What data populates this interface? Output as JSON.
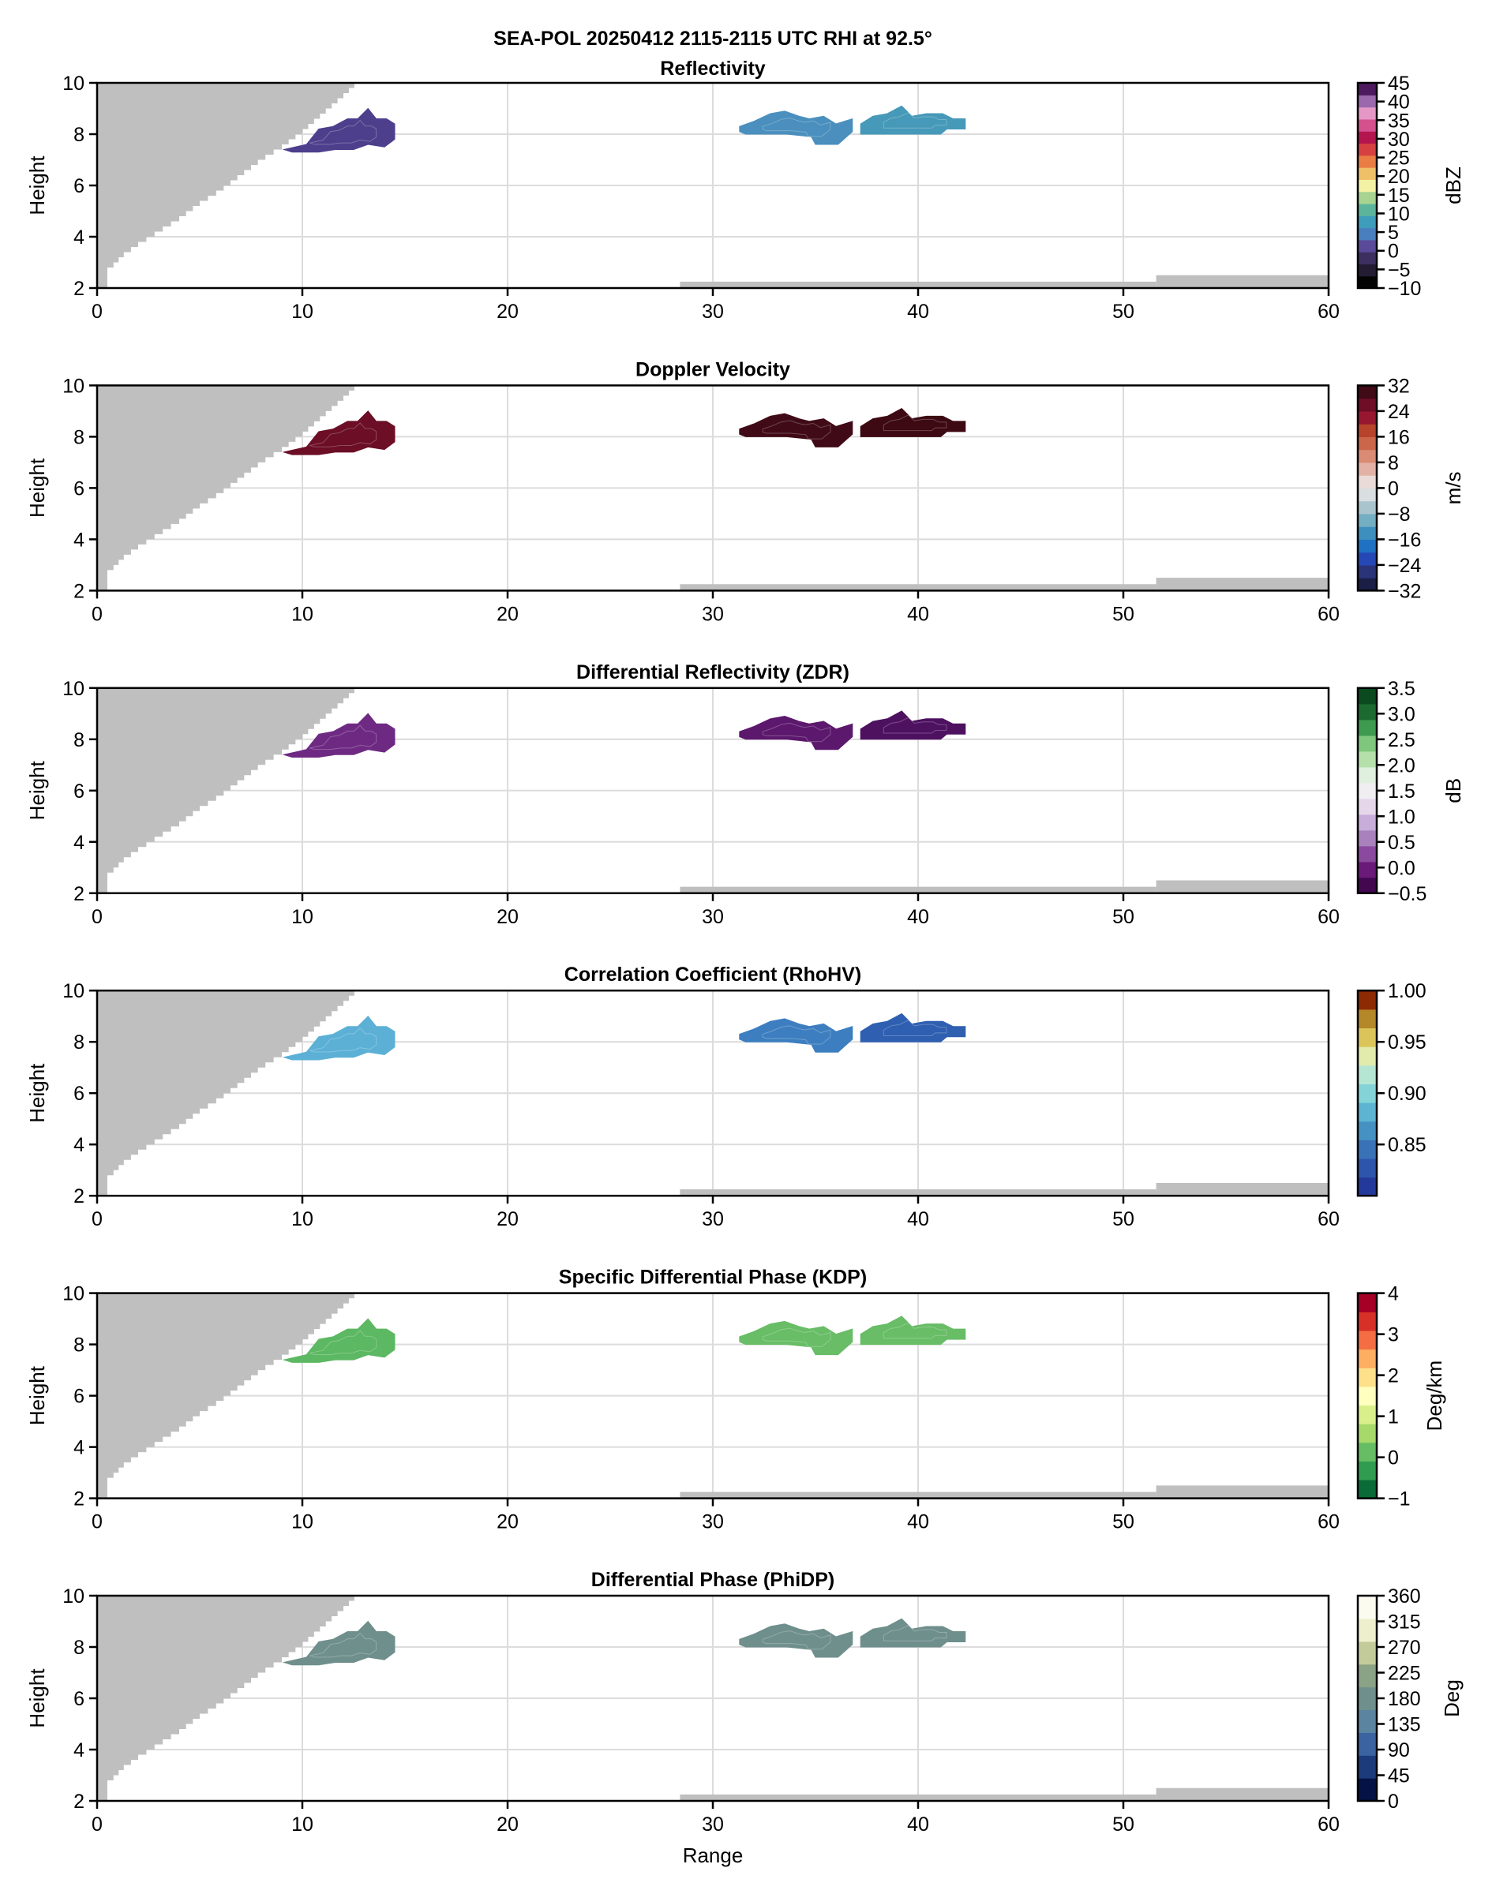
{
  "chart_data": {
    "type": "heatmap",
    "suptitle": "SEA-POL 20250412 2115-2115 UTC RHI at 92.5°",
    "xlabel": "Range",
    "ylabel": "Height",
    "xlim": [
      0,
      60
    ],
    "ylim": [
      2,
      10
    ],
    "xticks": [
      0,
      10,
      20,
      30,
      40,
      50,
      60
    ],
    "yticks": [
      2,
      4,
      6,
      8,
      10
    ],
    "grid": true,
    "blockage": {
      "color": "#bfbfbf",
      "description": "Gray blocked region: stepped wedge rising from range 0 at height ~2.3 to range ~12.8 at height 10; flat strip at height ~2.25 from range 28.4 to 51.6, stepping to ~2.5 from 51.6 to 60",
      "wedge_edge": [
        [
          0.5,
          2.0
        ],
        [
          0.5,
          2.6
        ],
        [
          0.8,
          2.8
        ],
        [
          1.3,
          3.2
        ],
        [
          2.0,
          3.6
        ],
        [
          3.0,
          4.1
        ],
        [
          4.0,
          4.6
        ],
        [
          5.0,
          5.2
        ],
        [
          6.0,
          5.7
        ],
        [
          7.0,
          6.3
        ],
        [
          8.0,
          6.9
        ],
        [
          9.0,
          7.4
        ],
        [
          10.0,
          8.0
        ],
        [
          11.0,
          8.7
        ],
        [
          12.0,
          9.4
        ],
        [
          12.8,
          10.0
        ]
      ],
      "floor_strips": [
        {
          "x0": 28.4,
          "x1": 51.6,
          "top": 2.25
        },
        {
          "x0": 51.6,
          "x1": 60.0,
          "top": 2.5
        }
      ]
    },
    "echoes": [
      {
        "name": "echo-near",
        "outline": [
          [
            9.1,
            7.4
          ],
          [
            10.2,
            7.6
          ],
          [
            10.8,
            8.2
          ],
          [
            11.5,
            8.3
          ],
          [
            12.2,
            8.6
          ],
          [
            12.7,
            8.6
          ],
          [
            13.2,
            9.0
          ],
          [
            13.6,
            8.6
          ],
          [
            14.1,
            8.6
          ],
          [
            14.5,
            8.4
          ],
          [
            14.5,
            7.8
          ],
          [
            14.0,
            7.5
          ],
          [
            13.2,
            7.6
          ],
          [
            12.5,
            7.4
          ],
          [
            11.6,
            7.4
          ],
          [
            10.8,
            7.3
          ],
          [
            9.5,
            7.3
          ]
        ]
      },
      {
        "name": "echo-mid",
        "outline": [
          [
            31.3,
            8.3
          ],
          [
            32.0,
            8.5
          ],
          [
            32.8,
            8.8
          ],
          [
            33.5,
            8.9
          ],
          [
            34.2,
            8.7
          ],
          [
            34.7,
            8.6
          ],
          [
            35.4,
            8.7
          ],
          [
            36.0,
            8.4
          ],
          [
            36.8,
            8.6
          ],
          [
            36.8,
            8.1
          ],
          [
            36.1,
            7.6
          ],
          [
            35.0,
            7.6
          ],
          [
            34.8,
            7.9
          ],
          [
            33.6,
            8.0
          ],
          [
            31.6,
            8.0
          ],
          [
            31.3,
            8.1
          ]
        ]
      },
      {
        "name": "echo-far",
        "outline": [
          [
            37.2,
            8.4
          ],
          [
            37.8,
            8.7
          ],
          [
            38.5,
            8.8
          ],
          [
            39.2,
            9.1
          ],
          [
            39.7,
            8.7
          ],
          [
            40.4,
            8.8
          ],
          [
            41.2,
            8.8
          ],
          [
            41.7,
            8.6
          ],
          [
            42.3,
            8.6
          ],
          [
            42.3,
            8.2
          ],
          [
            41.4,
            8.2
          ],
          [
            41.1,
            8.0
          ],
          [
            37.2,
            8.0
          ]
        ]
      }
    ],
    "panels": [
      {
        "title": "Reflectivity",
        "unit": "dBZ",
        "vmin": -10,
        "vmax": 45,
        "cbar_ticks": [
          "45",
          "40",
          "35",
          "30",
          "25",
          "20",
          "15",
          "10",
          "5",
          "0",
          "−5",
          "−10"
        ],
        "cbar_tick_values": [
          45,
          40,
          35,
          30,
          25,
          20,
          15,
          10,
          5,
          0,
          -5,
          -10
        ],
        "colormap": [
          "#040404",
          "#221d33",
          "#3d2f5f",
          "#5b4a99",
          "#4a7fbf",
          "#3e9dbb",
          "#5cb59a",
          "#a7d490",
          "#f3f2a4",
          "#f0c068",
          "#ea7d43",
          "#d64040",
          "#b4154e",
          "#d4518e",
          "#e597c6",
          "#9b67ad",
          "#4d1a5e"
        ],
        "echo_values": {
          "echo-near": [
            -2,
            3
          ],
          "echo-mid": [
            3,
            8
          ],
          "echo-far": [
            5,
            10
          ]
        },
        "echo_colors": {
          "echo-near": "#4e3f8c",
          "echo-mid": "#4a8fbd",
          "echo-far": "#4699b8"
        }
      },
      {
        "title": "Doppler Velocity",
        "unit": "m/s",
        "vmin": -32,
        "vmax": 32,
        "cbar_ticks": [
          "32",
          "24",
          "16",
          "8",
          "0",
          "−8",
          "−16",
          "−24",
          "−32"
        ],
        "cbar_tick_values": [
          32,
          24,
          16,
          8,
          0,
          -8,
          -16,
          -24,
          -32
        ],
        "colormap": [
          "#1b1e45",
          "#2a3479",
          "#2548b6",
          "#1f72c3",
          "#3d8fbd",
          "#73aec3",
          "#a9c4cc",
          "#d9dee0",
          "#ebdbd8",
          "#e3b2a6",
          "#d98b74",
          "#ca6649",
          "#b7432a",
          "#981730",
          "#6e0d26",
          "#400a17"
        ],
        "echo_values": {
          "echo-near": [
            24,
            28
          ],
          "echo-mid": [
            24,
            32
          ],
          "echo-far": [
            28,
            32
          ]
        },
        "echo_colors": {
          "echo-near": "#6b0e26",
          "echo-mid": "#400a17",
          "echo-far": "#3d0913"
        }
      },
      {
        "title": "Differential Reflectivity (ZDR)",
        "unit": "dB",
        "vmin": -0.5,
        "vmax": 3.5,
        "cbar_ticks": [
          "3.5",
          "3.0",
          "2.5",
          "2.0",
          "1.5",
          "1.0",
          "0.5",
          "0.0",
          "−0.5"
        ],
        "cbar_tick_values": [
          3.5,
          3.0,
          2.5,
          2.0,
          1.5,
          1.0,
          0.5,
          0.0,
          -0.5
        ],
        "colormap": [
          "#42074f",
          "#6a1a78",
          "#8a4b9e",
          "#a982bd",
          "#c8addb",
          "#e6d6ea",
          "#f1eef2",
          "#e0f0de",
          "#b5e0aa",
          "#7fc77c",
          "#3e9a4f",
          "#1c6a30",
          "#0b4a1e"
        ],
        "echo_values": {
          "echo-near": [
            -0.3,
            0.3
          ],
          "echo-mid": [
            -0.5,
            0.2
          ],
          "echo-far": [
            -0.5,
            0.2
          ]
        },
        "echo_colors": {
          "echo-near": "#6e2a82",
          "echo-mid": "#5c186c",
          "echo-far": "#4e1160"
        }
      },
      {
        "title": "Correlation Coefficient (RhoHV)",
        "unit": "",
        "vmin": 0.8,
        "vmax": 1.0,
        "cbar_ticks": [
          "1.00",
          "0.95",
          "0.90",
          "0.85"
        ],
        "cbar_tick_values": [
          1.0,
          0.95,
          0.9,
          0.85
        ],
        "colormap": [
          "#243a9a",
          "#2e55ac",
          "#3972b6",
          "#4592c2",
          "#5cb4d2",
          "#84d3d6",
          "#b5e6d4",
          "#e2ebac",
          "#dbc55b",
          "#b48728",
          "#8c2a04"
        ],
        "echo_values": {
          "echo-near": [
            0.85,
            0.97
          ],
          "echo-mid": [
            0.82,
            0.88
          ],
          "echo-far": [
            0.81,
            0.86
          ]
        },
        "echo_colors": {
          "echo-near": "#5cb0d6",
          "echo-mid": "#3d7ec0",
          "echo-far": "#2f5fb0"
        }
      },
      {
        "title": "Specific Differential Phase (KDP)",
        "unit": "Deg/km",
        "vmin": -1,
        "vmax": 4,
        "cbar_ticks": [
          "4",
          "3",
          "2",
          "1",
          "0",
          "−1"
        ],
        "cbar_tick_values": [
          4,
          3,
          2,
          1,
          0,
          -1
        ],
        "colormap": [
          "#0a6b38",
          "#2f9c4f",
          "#66bd63",
          "#a6d96a",
          "#d9ef8b",
          "#ffffbf",
          "#fee08b",
          "#fdae61",
          "#f46d43",
          "#d73027",
          "#a50026"
        ],
        "echo_values": {
          "echo-near": [
            -0.2,
            0.2
          ],
          "echo-mid": [
            0,
            0.1
          ],
          "echo-far": [
            0,
            0.1
          ]
        },
        "echo_colors": {
          "echo-near": "#5cb862",
          "echo-mid": "#68bd66",
          "echo-far": "#68bd66"
        }
      },
      {
        "title": "Differential Phase (PhiDP)",
        "unit": "Deg",
        "vmin": 0,
        "vmax": 360,
        "cbar_ticks": [
          "360",
          "315",
          "270",
          "225",
          "180",
          "135",
          "90",
          "45",
          "0"
        ],
        "cbar_tick_values": [
          360,
          315,
          270,
          225,
          180,
          135,
          90,
          45,
          0
        ],
        "colormap": [
          "#041245",
          "#1b3b7a",
          "#3a63a0",
          "#5a84a0",
          "#6f8f8c",
          "#8aa285",
          "#c4cb9b",
          "#eeefcd",
          "#fbfbf0"
        ],
        "echo_values": {
          "echo-near": [
            175,
            185
          ],
          "echo-mid": [
            175,
            185
          ],
          "echo-far": [
            175,
            185
          ]
        },
        "echo_colors": {
          "echo-near": "#6f8f8c",
          "echo-mid": "#6f8f8c",
          "echo-far": "#6f8f8c"
        }
      }
    ]
  }
}
